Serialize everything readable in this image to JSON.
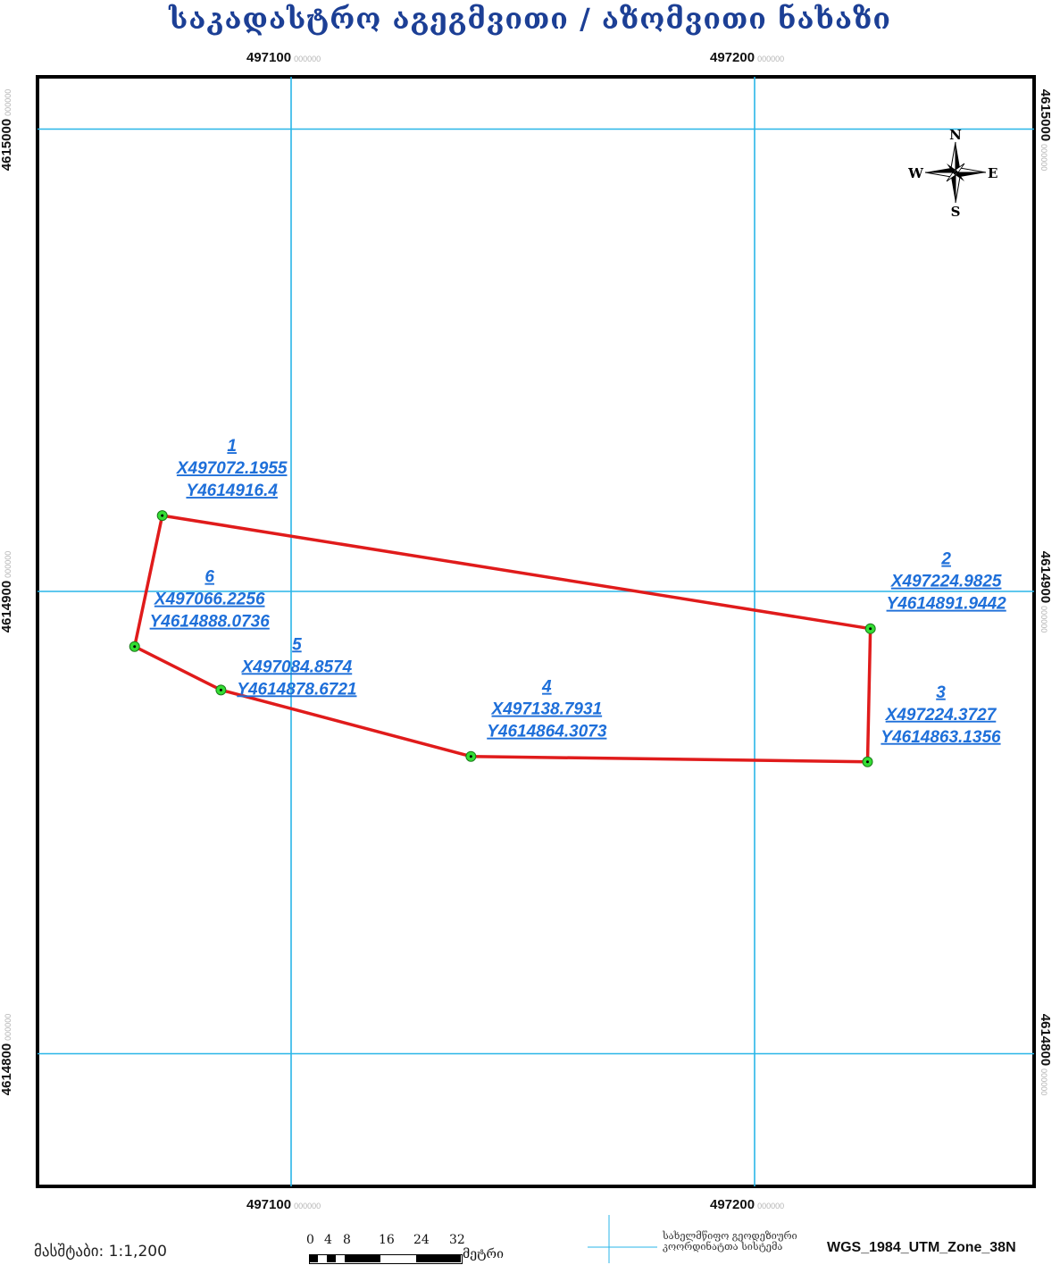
{
  "title": "საკადასტრო აგეგმვითი / აზომვითი ნახაზი",
  "grid": {
    "easting_ticks": [
      {
        "value": "497100",
        "suffix": "000000"
      },
      {
        "value": "497200",
        "suffix": "000000"
      }
    ],
    "northing_ticks": [
      {
        "value": "4615000",
        "suffix": "000000"
      },
      {
        "value": "4614900",
        "suffix": "000000"
      },
      {
        "value": "4614800",
        "suffix": "000000"
      }
    ],
    "grid_color": "#29b6e8"
  },
  "compass": {
    "n": "N",
    "s": "S",
    "e": "E",
    "w": "W"
  },
  "parcel": {
    "boundary_color": "#e01b1b",
    "vertex_color": "#33dd33",
    "points": [
      {
        "num": "1",
        "x_label": "X497072.1955",
        "y_label": "Y4614916.4",
        "x": 497072.1955,
        "y": 4614916.4
      },
      {
        "num": "2",
        "x_label": "X497224.9825",
        "y_label": "Y4614891.9442",
        "x": 497224.9825,
        "y": 4614891.9442
      },
      {
        "num": "3",
        "x_label": "X497224.3727",
        "y_label": "Y4614863.1356",
        "x": 497224.3727,
        "y": 4614863.1356
      },
      {
        "num": "4",
        "x_label": "X497138.7931",
        "y_label": "Y4614864.3073",
        "x": 497138.7931,
        "y": 4614864.3073
      },
      {
        "num": "5",
        "x_label": "X497084.8574",
        "y_label": "Y4614878.6721",
        "x": 497084.8574,
        "y": 4614878.6721
      },
      {
        "num": "6",
        "x_label": "X497066.2256",
        "y_label": "Y4614888.0736",
        "x": 497066.2256,
        "y": 4614888.0736
      }
    ]
  },
  "footer": {
    "scale_label": "მასშტაბი: 1:1,200",
    "scalebar_ticks": [
      "0",
      "4",
      "8",
      "16",
      "24",
      "32"
    ],
    "scalebar_unit": "მეტრი",
    "crs_note": "სახელმწიფო გეოდეზიური კოორდინატთა სისტემა",
    "crs_name": "WGS_1984_UTM_Zone_38N"
  }
}
